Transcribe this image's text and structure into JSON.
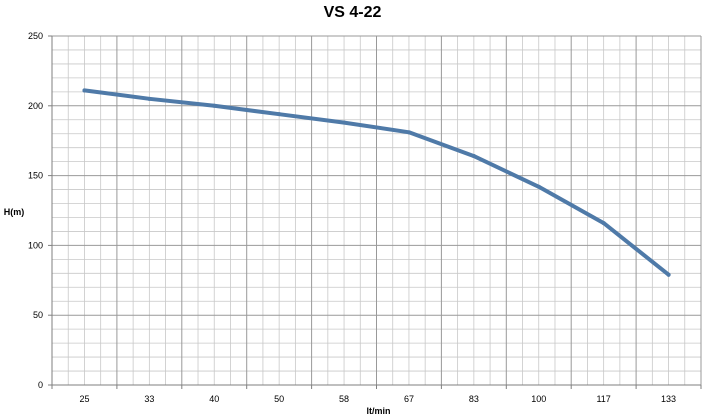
{
  "chart_data": {
    "type": "line",
    "title": "VS 4-22",
    "xlabel": "lt/min",
    "ylabel": "H(m)",
    "categories": [
      "25",
      "33",
      "40",
      "50",
      "58",
      "67",
      "83",
      "100",
      "117",
      "133"
    ],
    "series": [
      {
        "values": [
          211,
          205,
          200,
          194,
          188,
          181,
          164,
          142,
          116,
          79
        ]
      }
    ],
    "ylim": [
      0,
      250
    ],
    "yticks": [
      0,
      50,
      100,
      150,
      200,
      250
    ],
    "grid": true,
    "legend": "none",
    "colors": {
      "line": "#4f7aa8",
      "grid_major": "#999999",
      "grid_minor": "#c8c8c8",
      "axis": "#7f7f7f"
    }
  }
}
